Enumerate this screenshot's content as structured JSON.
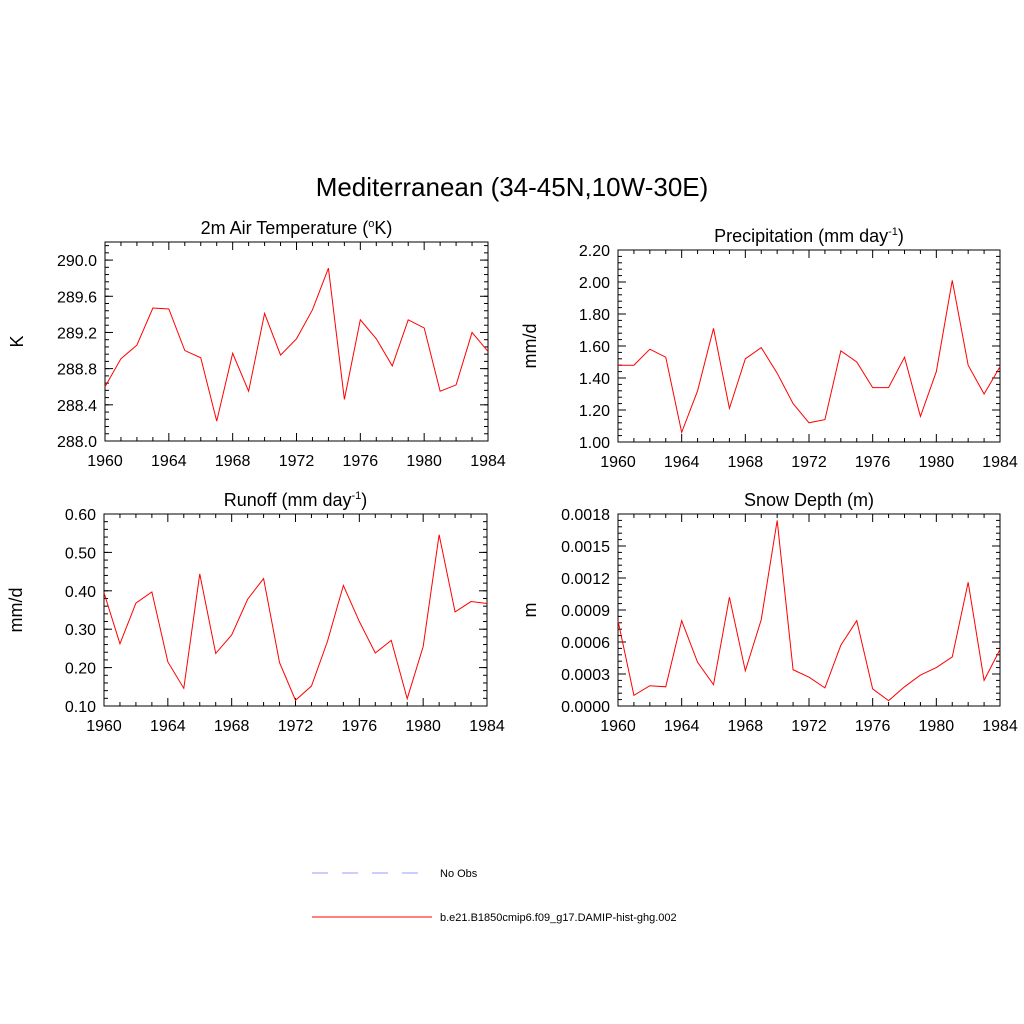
{
  "figure": {
    "title": "Mediterranean (34-45N,10W-30E)"
  },
  "legend": {
    "entries": [
      {
        "label": "No Obs",
        "color": "#9999ff",
        "dash": true
      },
      {
        "label": "b.e21.B1850cmip6.f09_g17.DAMIP-hist-ghg.002",
        "color": "#ff0000",
        "dash": false
      }
    ]
  },
  "chart_data": [
    {
      "type": "line",
      "title_main": "2m Air Temperature (",
      "title_sup": "o",
      "title_end": "K)",
      "ylabel": "K",
      "xlim": [
        1960,
        1984
      ],
      "ylim": [
        288.0,
        290.2
      ],
      "x_ticks": [
        1960,
        1964,
        1968,
        1972,
        1976,
        1980,
        1984
      ],
      "y_ticks": [
        288.0,
        288.4,
        288.8,
        289.2,
        289.6,
        290.0
      ],
      "y_tick_labels": [
        "288.0",
        "288.4",
        "288.8",
        "289.2",
        "289.6",
        "290.0"
      ],
      "series_color": "#ff0000",
      "x": [
        1960,
        1961,
        1962,
        1963,
        1964,
        1965,
        1966,
        1967,
        1968,
        1969,
        1970,
        1971,
        1972,
        1973,
        1974,
        1975,
        1976,
        1977,
        1978,
        1979,
        1980,
        1981,
        1982,
        1983,
        1984
      ],
      "values": [
        288.6,
        288.91,
        289.06,
        289.47,
        289.46,
        289.0,
        288.92,
        288.22,
        288.97,
        288.55,
        289.41,
        288.95,
        289.13,
        289.45,
        289.91,
        288.46,
        289.34,
        289.13,
        288.83,
        289.34,
        289.25,
        288.55,
        288.62,
        289.2,
        288.99
      ]
    },
    {
      "type": "line",
      "title_main": "Precipitation (mm day",
      "title_sup": "-1",
      "title_end": ")",
      "ylabel": "mm/d",
      "xlim": [
        1960,
        1984
      ],
      "ylim": [
        1.0,
        2.2
      ],
      "x_ticks": [
        1960,
        1964,
        1968,
        1972,
        1976,
        1980,
        1984
      ],
      "y_ticks": [
        1.0,
        1.2,
        1.4,
        1.6,
        1.8,
        2.0,
        2.2
      ],
      "y_tick_labels": [
        "1.00",
        "1.20",
        "1.40",
        "1.60",
        "1.80",
        "2.00",
        "2.20"
      ],
      "series_color": "#ff0000",
      "x": [
        1960,
        1961,
        1962,
        1963,
        1964,
        1965,
        1966,
        1967,
        1968,
        1969,
        1970,
        1971,
        1972,
        1973,
        1974,
        1975,
        1976,
        1977,
        1978,
        1979,
        1980,
        1981,
        1982,
        1983,
        1984
      ],
      "values": [
        1.48,
        1.48,
        1.58,
        1.53,
        1.06,
        1.32,
        1.71,
        1.21,
        1.52,
        1.59,
        1.43,
        1.24,
        1.12,
        1.14,
        1.57,
        1.5,
        1.34,
        1.34,
        1.53,
        1.16,
        1.44,
        2.01,
        1.48,
        1.3,
        1.47
      ]
    },
    {
      "type": "line",
      "title_main": "Runoff (mm day",
      "title_sup": "-1",
      "title_end": ")",
      "ylabel": "mm/d",
      "xlim": [
        1960,
        1984
      ],
      "ylim": [
        0.1,
        0.6
      ],
      "x_ticks": [
        1960,
        1964,
        1968,
        1972,
        1976,
        1980,
        1984
      ],
      "y_ticks": [
        0.1,
        0.2,
        0.3,
        0.4,
        0.5,
        0.6
      ],
      "y_tick_labels": [
        "0.10",
        "0.20",
        "0.30",
        "0.40",
        "0.50",
        "0.60"
      ],
      "series_color": "#ff0000",
      "x": [
        1960,
        1961,
        1962,
        1963,
        1964,
        1965,
        1966,
        1967,
        1968,
        1969,
        1970,
        1971,
        1972,
        1973,
        1974,
        1975,
        1976,
        1977,
        1978,
        1979,
        1980,
        1981,
        1982,
        1983,
        1984
      ],
      "values": [
        0.395,
        0.262,
        0.368,
        0.397,
        0.215,
        0.146,
        0.444,
        0.237,
        0.285,
        0.378,
        0.432,
        0.213,
        0.115,
        0.152,
        0.268,
        0.414,
        0.32,
        0.238,
        0.271,
        0.119,
        0.255,
        0.546,
        0.345,
        0.372,
        0.367
      ]
    },
    {
      "type": "line",
      "title_main": "Snow Depth (m)",
      "title_sup": "",
      "title_end": "",
      "ylabel": "m",
      "xlim": [
        1960,
        1984
      ],
      "ylim": [
        0.0,
        0.0018
      ],
      "x_ticks": [
        1960,
        1964,
        1968,
        1972,
        1976,
        1980,
        1984
      ],
      "y_ticks": [
        0.0,
        0.0003,
        0.0006,
        0.0009,
        0.0012,
        0.0015,
        0.0018
      ],
      "y_tick_labels": [
        "0.0000",
        "0.0003",
        "0.0006",
        "0.0009",
        "0.0012",
        "0.0015",
        "0.0018"
      ],
      "series_color": "#ff0000",
      "x": [
        1960,
        1961,
        1962,
        1963,
        1964,
        1965,
        1966,
        1967,
        1968,
        1969,
        1970,
        1971,
        1972,
        1973,
        1974,
        1975,
        1976,
        1977,
        1978,
        1979,
        1980,
        1981,
        1982,
        1983,
        1984
      ],
      "values": [
        0.0008,
        0.0001,
        0.00019,
        0.00018,
        0.0008,
        0.00041,
        0.0002,
        0.00102,
        0.00033,
        0.00081,
        0.00174,
        0.00034,
        0.00027,
        0.00017,
        0.00057,
        0.0008,
        0.00016,
        5e-05,
        0.00018,
        0.00029,
        0.00036,
        0.00046,
        0.00116,
        0.00024,
        0.00053
      ]
    }
  ]
}
